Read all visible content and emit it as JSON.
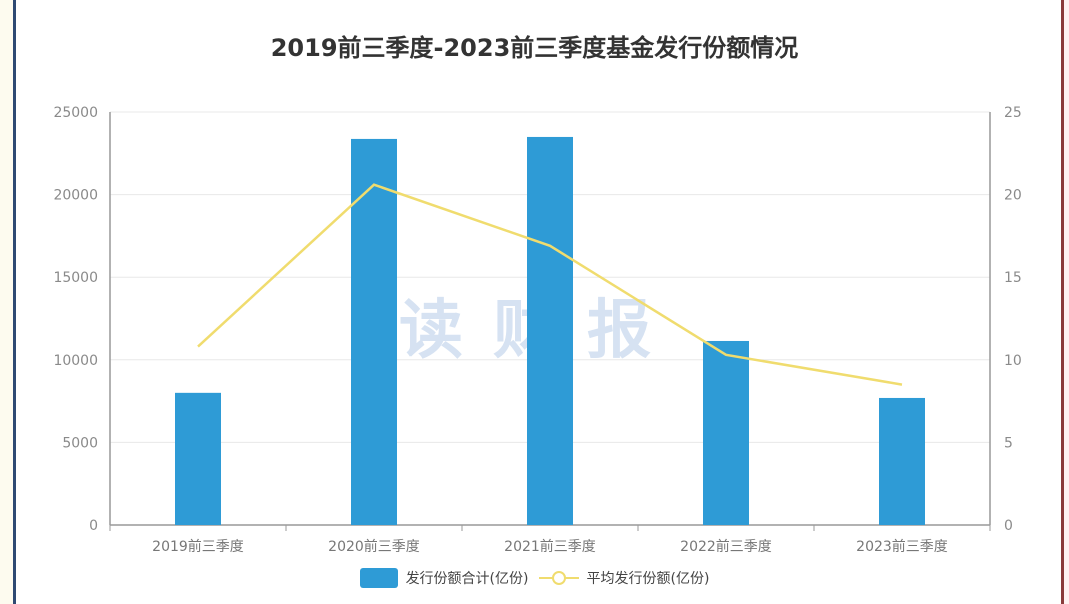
{
  "chart_data": {
    "type": "bar+line",
    "title": "2019前三季度-2023前三季度基金发行份额情况",
    "categories": [
      "2019前三季度",
      "2020前三季度",
      "2021前三季度",
      "2022前三季度",
      "2023前三季度"
    ],
    "series": [
      {
        "name": "发行份额合计(亿份)",
        "type": "bar",
        "axis": "left",
        "color": "#2e9bd6",
        "values": [
          8000,
          23370,
          23490,
          11140,
          7690
        ]
      },
      {
        "name": "平均发行份额(亿份)",
        "type": "line",
        "axis": "right",
        "color": "#f0dc6e",
        "values": [
          10.8,
          20.6,
          16.9,
          10.3,
          8.5
        ]
      }
    ],
    "left_axis": {
      "ylim": [
        0,
        25000
      ],
      "ticks": [
        "0",
        "5000",
        "10000",
        "15000",
        "20000",
        "25000"
      ]
    },
    "right_axis": {
      "ylim": [
        0,
        25
      ],
      "ticks": [
        "0",
        "5",
        "10",
        "15",
        "20",
        "25"
      ]
    },
    "xlabel": "",
    "ylabel": "",
    "grid": true,
    "legend_position": "bottom",
    "watermark": "读财报"
  },
  "legend": {
    "bar_label": "发行份额合计(亿份)",
    "line_label": "平均发行份额(亿份)"
  }
}
